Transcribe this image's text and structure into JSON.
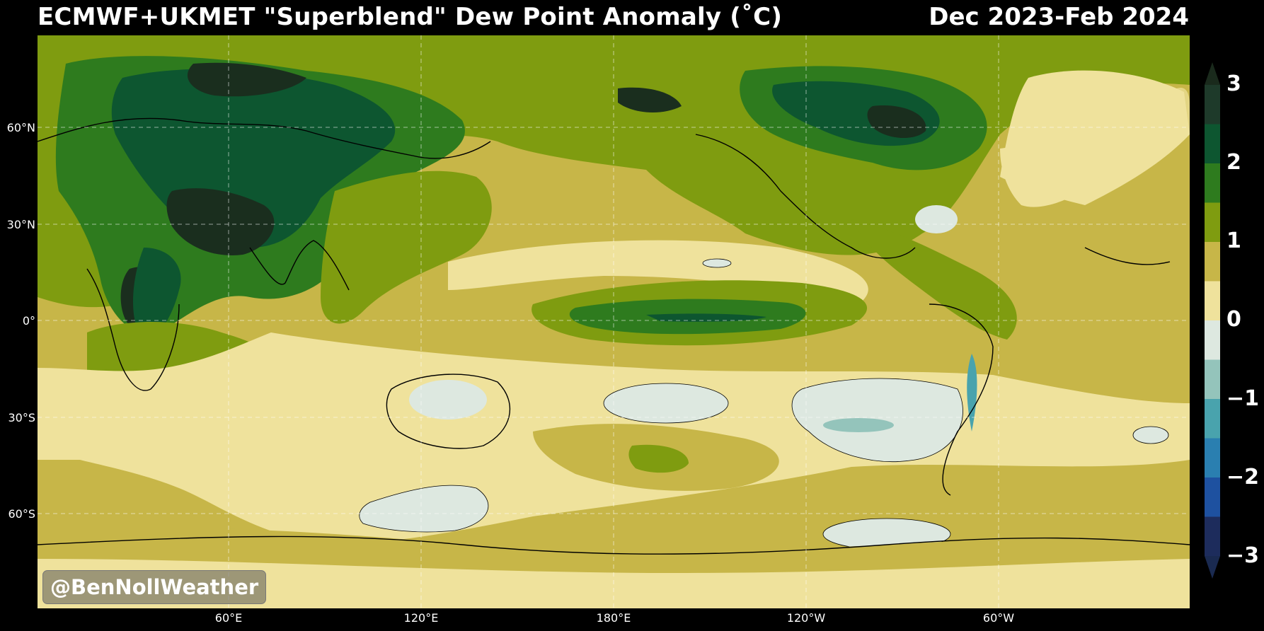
{
  "header": {
    "title": "ECMWF+UKMET \"Superblend\" Dew Point Anomaly (˚C)",
    "period": "Dec 2023-Feb 2024"
  },
  "map": {
    "latitude_labels": [
      "60°N",
      "30°N",
      "0°",
      "30°S",
      "60°S"
    ],
    "longitude_labels": [
      "60°E",
      "120°E",
      "180°E",
      "120°W",
      "60°W"
    ],
    "watermark": "@BenNollWeather",
    "colors": {
      "strong_positive": "#1a2e1e",
      "high_positive": "#0d5630",
      "medium_positive": "#2e7b1e",
      "low_positive": "#7f9c10",
      "slight_positive": "#c7b648",
      "near_zero_positive": "#efe29c",
      "near_zero_negative": "#dde8e0",
      "slight_negative": "#94c4bb"
    }
  },
  "colorbar": {
    "tick_labels": [
      "3",
      "2",
      "1",
      "0",
      "−1",
      "−2",
      "−3"
    ],
    "bands": [
      "#1e3a2a",
      "#0d5630",
      "#2e7b1e",
      "#7f9c10",
      "#c7b648",
      "#efe29c",
      "#dde8e0",
      "#94c4bb",
      "#49a3ad",
      "#2a7fb0",
      "#1e51a0",
      "#1d2c5c"
    ],
    "extend_top": "#1a2a1c",
    "extend_bottom": "#1a2a50"
  }
}
